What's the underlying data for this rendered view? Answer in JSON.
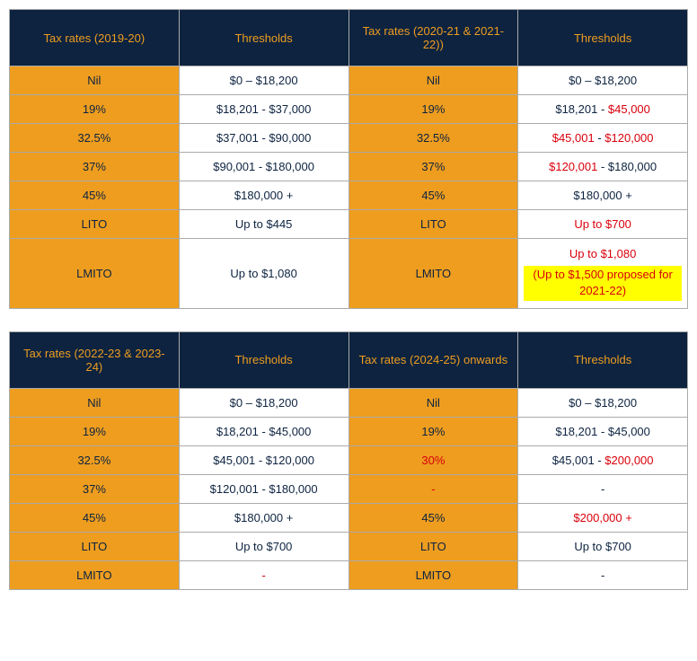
{
  "colors": {
    "header_bg": "#0d2340",
    "header_text": "#ee9d1f",
    "rate_bg": "#ee9d1f",
    "threshold_bg": "#ffffff",
    "text_navy": "#0d2340",
    "text_red": "#d9000c",
    "highlight_bg": "#ffff00",
    "border": "#aaaaaa"
  },
  "table1": {
    "headers": [
      "Tax rates (2019-20)",
      "Thresholds",
      "Tax rates (2020-21 & 2021-22))",
      "Thresholds"
    ],
    "rows": [
      {
        "rate1": "Nil",
        "thresh1": [
          {
            "t": "$0 – $18,200",
            "c": "navy"
          }
        ],
        "rate2": "Nil",
        "thresh2": [
          {
            "t": "$0 – $18,200",
            "c": "navy"
          }
        ]
      },
      {
        "rate1": "19%",
        "thresh1": [
          {
            "t": "$18,201 - $37,000",
            "c": "navy"
          }
        ],
        "rate2": "19%",
        "thresh2": [
          {
            "t": "$18,201 - ",
            "c": "navy"
          },
          {
            "t": "$45,000",
            "c": "red"
          }
        ]
      },
      {
        "rate1": "32.5%",
        "thresh1": [
          {
            "t": "$37,001 - $90,000",
            "c": "navy"
          }
        ],
        "rate2": "32.5%",
        "thresh2": [
          {
            "t": "$45,001",
            "c": "red"
          },
          {
            "t": " - ",
            "c": "navy"
          },
          {
            "t": "$120,000",
            "c": "red"
          }
        ]
      },
      {
        "rate1": "37%",
        "thresh1": [
          {
            "t": "$90,001 - $180,000",
            "c": "navy"
          }
        ],
        "rate2": "37%",
        "thresh2": [
          {
            "t": "$120,001",
            "c": "red"
          },
          {
            "t": " - $180,000",
            "c": "navy"
          }
        ]
      },
      {
        "rate1": "45%",
        "thresh1": [
          {
            "t": "$180,000 +",
            "c": "navy"
          }
        ],
        "rate2": "45%",
        "thresh2": [
          {
            "t": "$180,000 +",
            "c": "navy"
          }
        ]
      },
      {
        "rate1": "LITO",
        "thresh1": [
          {
            "t": "Up to $445",
            "c": "navy"
          }
        ],
        "rate2": "LITO",
        "thresh2": [
          {
            "t": "Up to $700",
            "c": "red"
          }
        ]
      },
      {
        "rate1": "LMITO",
        "thresh1": [
          {
            "t": "Up to $1,080",
            "c": "navy"
          }
        ],
        "rate2": "LMITO",
        "thresh2_multi": {
          "line1": [
            {
              "t": "Up to $1,080",
              "c": "red"
            }
          ],
          "line2_highlight": "(Up to $1,500 proposed for 2021-22)"
        }
      }
    ]
  },
  "table2": {
    "headers": [
      "Tax rates (2022-23 & 2023-24)",
      "Thresholds",
      "Tax rates (2024-25) onwards",
      "Thresholds"
    ],
    "rows": [
      {
        "rate1": "Nil",
        "thresh1": [
          {
            "t": "$0 – $18,200",
            "c": "navy"
          }
        ],
        "rate2": "Nil",
        "thresh2": [
          {
            "t": "$0 – $18,200",
            "c": "navy"
          }
        ]
      },
      {
        "rate1": "19%",
        "thresh1": [
          {
            "t": "$18,201 - $45,000",
            "c": "navy"
          }
        ],
        "rate2": "19%",
        "thresh2": [
          {
            "t": "$18,201 - $45,000",
            "c": "navy"
          }
        ]
      },
      {
        "rate1": "32.5%",
        "thresh1": [
          {
            "t": "$45,001 - $120,000",
            "c": "navy"
          }
        ],
        "rate2": "30%",
        "rate2_c": "red",
        "thresh2": [
          {
            "t": "$45,001 - ",
            "c": "navy"
          },
          {
            "t": "$200,000",
            "c": "red"
          }
        ]
      },
      {
        "rate1": "37%",
        "thresh1": [
          {
            "t": "$120,001 - $180,000",
            "c": "navy"
          }
        ],
        "rate2": "-",
        "rate2_c": "red",
        "thresh2": [
          {
            "t": "-",
            "c": "navy"
          }
        ]
      },
      {
        "rate1": "45%",
        "thresh1": [
          {
            "t": "$180,000 +",
            "c": "navy"
          }
        ],
        "rate2": "45%",
        "thresh2": [
          {
            "t": "$200,000 +",
            "c": "red"
          }
        ]
      },
      {
        "rate1": "LITO",
        "thresh1": [
          {
            "t": "Up to $700",
            "c": "navy"
          }
        ],
        "rate2": "LITO",
        "thresh2": [
          {
            "t": "Up to $700",
            "c": "navy"
          }
        ]
      },
      {
        "rate1": "LMITO",
        "thresh1": [
          {
            "t": "-",
            "c": "red"
          }
        ],
        "rate2": "LMITO",
        "thresh2": [
          {
            "t": "-",
            "c": "navy"
          }
        ]
      }
    ]
  }
}
